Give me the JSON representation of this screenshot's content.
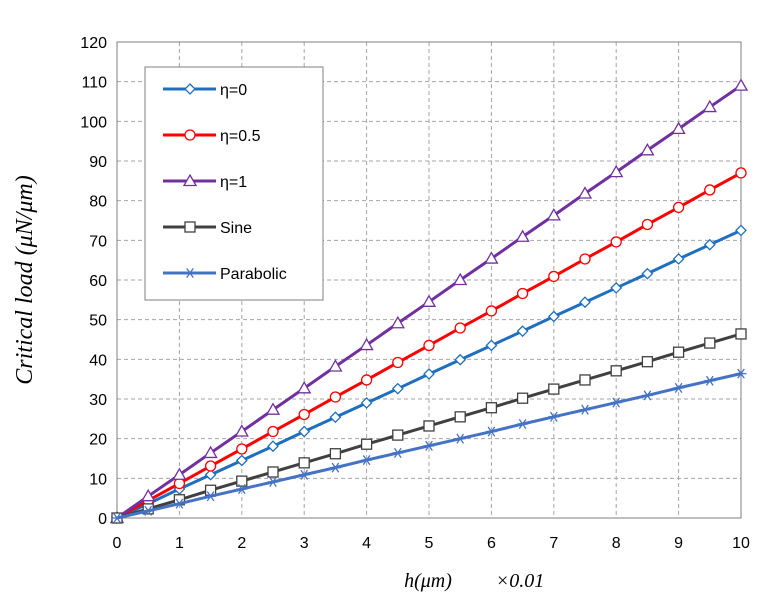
{
  "chart_data": {
    "type": "line",
    "xlabel": "h(μm)",
    "xlabel_suffix": "×0.01",
    "ylabel": "Critical load (μN/μm)",
    "xlim": [
      0,
      10
    ],
    "ylim": [
      0,
      120
    ],
    "x_ticks": [
      "0",
      "1",
      "2",
      "3",
      "4",
      "5",
      "6",
      "7",
      "8",
      "9",
      "10"
    ],
    "y_ticks": [
      "0",
      "10",
      "20",
      "30",
      "40",
      "50",
      "60",
      "70",
      "80",
      "90",
      "100",
      "110",
      "120"
    ],
    "grid": true,
    "grid_style": "dashed",
    "legend_position": "top-left",
    "x": [
      0,
      0.5,
      1,
      1.5,
      2,
      2.5,
      3,
      3.5,
      4,
      4.5,
      5,
      5.5,
      6,
      6.5,
      7,
      7.5,
      8,
      8.5,
      9,
      9.5,
      10
    ],
    "series": [
      {
        "name": "η=0",
        "color": "#1f6fc0",
        "marker": "diamond",
        "values": [
          0,
          3.6,
          7.3,
          10.9,
          14.5,
          18.1,
          21.8,
          25.4,
          29.0,
          32.6,
          36.3,
          39.9,
          43.5,
          47.1,
          50.8,
          54.4,
          58.0,
          61.6,
          65.3,
          68.9,
          72.5
        ]
      },
      {
        "name": "η=0.5",
        "color": "#ff0000",
        "marker": "circle",
        "values": [
          0,
          4.4,
          8.7,
          13.1,
          17.4,
          21.8,
          26.1,
          30.5,
          34.8,
          39.2,
          43.5,
          47.9,
          52.2,
          56.6,
          60.9,
          65.3,
          69.6,
          74.0,
          78.3,
          82.7,
          87.0
        ]
      },
      {
        "name": "η=1",
        "color": "#7030a0",
        "marker": "triangle",
        "values": [
          0,
          5.5,
          10.9,
          16.4,
          21.8,
          27.3,
          32.7,
          38.2,
          43.6,
          49.1,
          54.5,
          60.0,
          65.4,
          70.9,
          76.3,
          81.8,
          87.2,
          92.7,
          98.1,
          103.6,
          109.0
        ]
      },
      {
        "name": "Sine",
        "color": "#404040",
        "marker": "square",
        "values": [
          0,
          2.3,
          4.6,
          7.0,
          9.3,
          11.6,
          13.9,
          16.2,
          18.6,
          20.9,
          23.2,
          25.5,
          27.8,
          30.2,
          32.5,
          34.8,
          37.1,
          39.4,
          41.8,
          44.1,
          46.4
        ]
      },
      {
        "name": "Parabolic",
        "color": "#4472c4",
        "marker": "asterisk",
        "values": [
          0,
          1.8,
          3.6,
          5.5,
          7.3,
          9.1,
          10.9,
          12.7,
          14.6,
          16.4,
          18.2,
          20.0,
          21.8,
          23.7,
          25.5,
          27.3,
          29.1,
          30.9,
          32.8,
          34.6,
          36.4
        ]
      }
    ]
  }
}
